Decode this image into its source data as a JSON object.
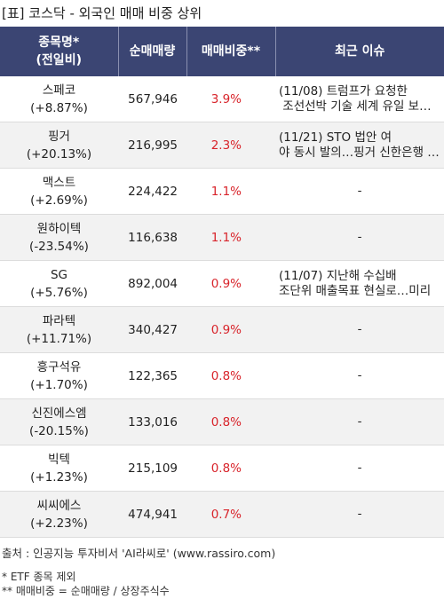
{
  "title": "[표] 코스닥 - 외국인 매매 비중 상위",
  "headers": {
    "name_line1": "종목명*",
    "name_line2": "(전일비)",
    "volume": "순매매량",
    "ratio": "매매비중**",
    "issue": "최근 이슈"
  },
  "rows": [
    {
      "name": "스페코",
      "change": "(+8.87%)",
      "volume": "567,946",
      "ratio": "3.9%",
      "issue1": "(11/08) 트럼프가 요청한",
      "issue2": " 조선선박 기술 세계 유일 보…"
    },
    {
      "name": "핑거",
      "change": "(+20.13%)",
      "volume": "216,995",
      "ratio": "2.3%",
      "issue1": "(11/21) STO 법안 여",
      "issue2": "야 동시 발의…핑거 신한은행 …"
    },
    {
      "name": "맥스트",
      "change": "(+2.69%)",
      "volume": "224,422",
      "ratio": "1.1%",
      "issue1": "-",
      "issue2": ""
    },
    {
      "name": "원하이텍",
      "change": "(-23.54%)",
      "volume": "116,638",
      "ratio": "1.1%",
      "issue1": "-",
      "issue2": ""
    },
    {
      "name": "SG",
      "change": "(+5.76%)",
      "volume": "892,004",
      "ratio": "0.9%",
      "issue1": "(11/07) 지난해 수십배",
      "issue2": "조단위 매출목표 현실로…미리"
    },
    {
      "name": "파라텍",
      "change": "(+11.71%)",
      "volume": "340,427",
      "ratio": "0.9%",
      "issue1": "-",
      "issue2": ""
    },
    {
      "name": "흥구석유",
      "change": "(+1.70%)",
      "volume": "122,365",
      "ratio": "0.8%",
      "issue1": "-",
      "issue2": ""
    },
    {
      "name": "신진에스엠",
      "change": "(-20.15%)",
      "volume": "133,016",
      "ratio": "0.8%",
      "issue1": "-",
      "issue2": ""
    },
    {
      "name": "빅텍",
      "change": "(+1.23%)",
      "volume": "215,109",
      "ratio": "0.8%",
      "issue1": "-",
      "issue2": ""
    },
    {
      "name": "씨씨에스",
      "change": "(+2.23%)",
      "volume": "474,941",
      "ratio": "0.7%",
      "issue1": "-",
      "issue2": ""
    }
  ],
  "footer": {
    "source": "출처 : 인공지능 투자비서 'AI라씨로' (www.rassiro.com)",
    "note1": "* ETF 종목 제외",
    "note2": "** 매매비중 = 순매매량 / 상장주식수"
  },
  "colors": {
    "header_bg": "#3b4573",
    "ratio_text": "#d8232a",
    "alt_row_bg": "#f2f2f2"
  }
}
